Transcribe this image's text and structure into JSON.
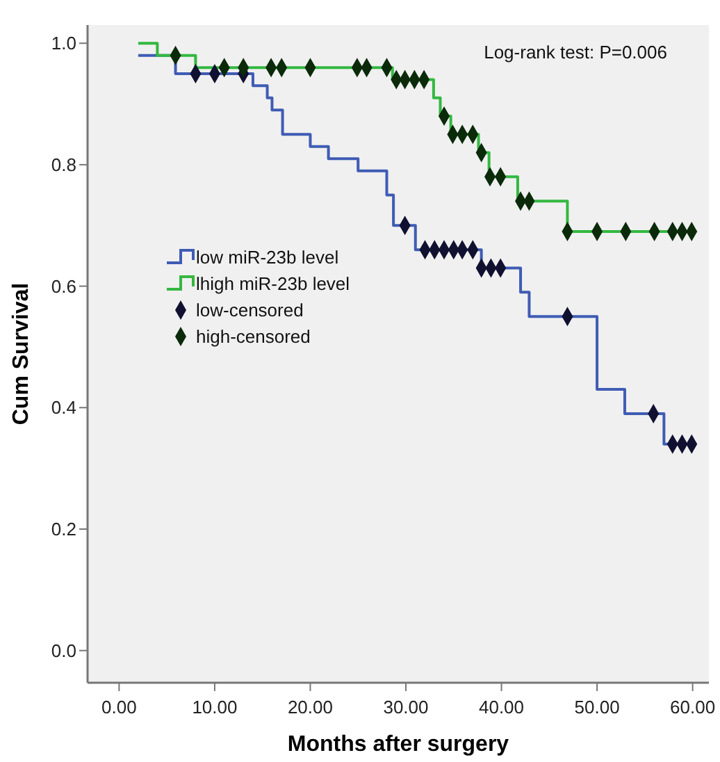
{
  "chart_data": {
    "type": "step",
    "xlabel": "Months after surgery",
    "ylabel": "Cum Survival",
    "annotations": [
      "Log-rank test: P=0.006"
    ],
    "xlim": [
      -3.3,
      61.7
    ],
    "ylim": [
      -0.053,
      1.03
    ],
    "xticks": [
      {
        "value": 0,
        "label": "0.00"
      },
      {
        "value": 10,
        "label": "10.00"
      },
      {
        "value": 20,
        "label": "20.00"
      },
      {
        "value": 30,
        "label": "30.00"
      },
      {
        "value": 40,
        "label": "40.00"
      },
      {
        "value": 50,
        "label": "50.00"
      },
      {
        "value": 60,
        "label": "60.00"
      }
    ],
    "yticks": [
      {
        "value": 0,
        "label": "0.0"
      },
      {
        "value": 0.2,
        "label": "0.2"
      },
      {
        "value": 0.4,
        "label": "0.4"
      },
      {
        "value": 0.6,
        "label": "0.6"
      },
      {
        "value": 0.8,
        "label": "0.8"
      },
      {
        "value": 1,
        "label": "1.0"
      }
    ],
    "grid": false,
    "legend": "left",
    "series": [
      {
        "name": "low miR-23b level",
        "color": "#3f5cb4",
        "x": [
          2,
          5.9,
          14,
          15.5,
          16,
          17.1,
          20,
          21.9,
          25,
          28,
          28.7,
          31,
          37.9,
          42,
          42.9,
          50,
          52.9,
          57,
          59.9
        ],
        "values": [
          0.98,
          0.95,
          0.93,
          0.91,
          0.89,
          0.85,
          0.83,
          0.81,
          0.79,
          0.75,
          0.7,
          0.66,
          0.63,
          0.59,
          0.55,
          0.43,
          0.39,
          0.34,
          0.34
        ]
      },
      {
        "name": "lhigh miR-23b level",
        "color": "#33b840",
        "x": [
          2,
          4,
          8,
          28.6,
          32.9,
          33.6,
          34.7,
          37.6,
          38.7,
          41.7,
          46.9,
          59.9
        ],
        "values": [
          1.0,
          0.98,
          0.96,
          0.94,
          0.91,
          0.88,
          0.85,
          0.82,
          0.78,
          0.74,
          0.69,
          0.69
        ]
      },
      {
        "name": "low-censored",
        "type": "scatter",
        "marker": "diamond",
        "color": "#101030",
        "x": [
          8,
          10,
          13,
          29.9,
          32,
          33,
          34,
          35,
          35.9,
          37,
          37.9,
          38.9,
          39.9,
          46.9,
          55.9,
          57.9,
          58.9,
          59.9
        ],
        "values": [
          0.95,
          0.95,
          0.95,
          0.7,
          0.66,
          0.66,
          0.66,
          0.66,
          0.66,
          0.66,
          0.63,
          0.63,
          0.63,
          0.55,
          0.39,
          0.34,
          0.34,
          0.34
        ]
      },
      {
        "name": "high-censored",
        "type": "scatter",
        "marker": "diamond",
        "color": "#0a2a0a",
        "x": [
          5.9,
          11,
          13,
          15.9,
          17,
          20,
          24.9,
          25.9,
          28,
          29,
          29.9,
          30.9,
          31.9,
          34,
          34.9,
          35.9,
          37,
          37.9,
          38.8,
          39.9,
          42,
          42.9,
          46.9,
          50,
          53,
          56,
          57.9,
          58.9,
          59.9
        ],
        "values": [
          0.98,
          0.96,
          0.96,
          0.96,
          0.96,
          0.96,
          0.96,
          0.96,
          0.96,
          0.94,
          0.94,
          0.94,
          0.94,
          0.88,
          0.85,
          0.85,
          0.85,
          0.82,
          0.78,
          0.78,
          0.74,
          0.74,
          0.69,
          0.69,
          0.69,
          0.69,
          0.69,
          0.69,
          0.69
        ]
      }
    ]
  }
}
